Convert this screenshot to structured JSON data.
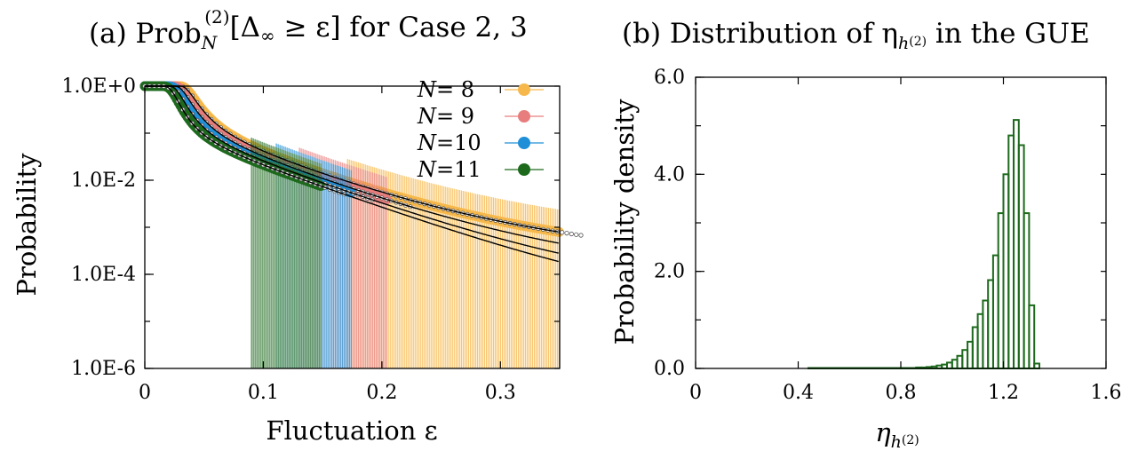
{
  "chart_data": [
    {
      "type": "scatter",
      "panel_label": "(a)",
      "title": "(a) Prob",
      "title_sub": "N",
      "title_sup": "(2)",
      "title_rest": "[Δ",
      "title_sub2": "∞",
      "title_end": " ≥ ε] for Case 2, 3",
      "xlabel": "Fluctuation ε",
      "ylabel": "Probability",
      "xlim": [
        0,
        0.35
      ],
      "ylim": [
        1e-06,
        2
      ],
      "yscale": "log",
      "x_ticks": [
        0,
        0.1,
        0.2,
        0.3
      ],
      "x_tick_labels": [
        "0",
        "0.1",
        "0.2",
        "0.3"
      ],
      "y_ticks": [
        1,
        0.01,
        0.0001,
        1e-06
      ],
      "y_tick_labels": [
        "1.0E+0",
        "1.0E-2",
        "1.0E-4",
        "1.0E-6"
      ],
      "legend_position": "top-right",
      "series": [
        {
          "name": "N = 8",
          "legend_N": "N",
          "legend_val": "= 8",
          "color": "#f7b84b",
          "x0": 0.03,
          "eps_floor": 0.2,
          "x_max": 0.35,
          "floor_prob": 6.5e-06
        },
        {
          "name": "N = 9",
          "legend_N": "N",
          "legend_val": "= 9",
          "color": "#e87d7d",
          "x0": 0.025,
          "eps_floor": 0.16,
          "x_max": 0.205,
          "floor_prob": 6.5e-06
        },
        {
          "name": "N = 10",
          "legend_N": "N",
          "legend_val": "=10",
          "color": "#1f8fd8",
          "x0": 0.02,
          "eps_floor": 0.14,
          "x_max": 0.175,
          "floor_prob": 6.5e-06
        },
        {
          "name": "N = 11",
          "legend_N": "N",
          "legend_val": "=11",
          "color": "#1d6a1d",
          "x0": 0.015,
          "eps_floor": 0.12,
          "x_max": 0.15,
          "floor_prob": 6.5e-06
        }
      ],
      "fit_curves": [
        {
          "x0": 0.03,
          "a": 2.2,
          "b": 0.38
        },
        {
          "x0": 0.025,
          "a": 2.4,
          "b": 0.4
        },
        {
          "x0": 0.02,
          "a": 2.6,
          "b": 0.4
        },
        {
          "x0": 0.015,
          "a": 2.8,
          "b": 0.4
        }
      ]
    },
    {
      "type": "bar",
      "panel_label": "(b)",
      "title": "(b) Distribution of η",
      "title_sub": "h",
      "title_subsup": "(2)",
      "title_rest": " in the GUE",
      "xlabel": "η",
      "xlabel_sub": "h",
      "xlabel_subsup": "(2)",
      "ylabel": "Probability density",
      "xlim": [
        0,
        1.6
      ],
      "ylim": [
        0,
        6.0
      ],
      "x_ticks": [
        0,
        0.4,
        0.8,
        1.2,
        1.6
      ],
      "x_tick_labels": [
        "0",
        "0.4",
        "0.8",
        "1.2",
        "1.6"
      ],
      "y_ticks": [
        0,
        2,
        4,
        6
      ],
      "y_tick_labels": [
        "0.0",
        "2.0",
        "4.0",
        "6.0"
      ],
      "color": "#1d6a1d",
      "bin_width": 0.02,
      "bin_start": 0.44,
      "values": [
        0.01,
        0.01,
        0.01,
        0.01,
        0.01,
        0.01,
        0.01,
        0.01,
        0.01,
        0.01,
        0.01,
        0.01,
        0.01,
        0.01,
        0.01,
        0.01,
        0.01,
        0.01,
        0.01,
        0.01,
        0.01,
        0.02,
        0.02,
        0.03,
        0.04,
        0.06,
        0.08,
        0.12,
        0.18,
        0.26,
        0.38,
        0.55,
        0.85,
        1.12,
        1.4,
        1.82,
        2.33,
        3.2,
        4.0,
        4.8,
        5.12,
        4.6,
        3.2,
        1.3,
        0.1
      ]
    }
  ]
}
